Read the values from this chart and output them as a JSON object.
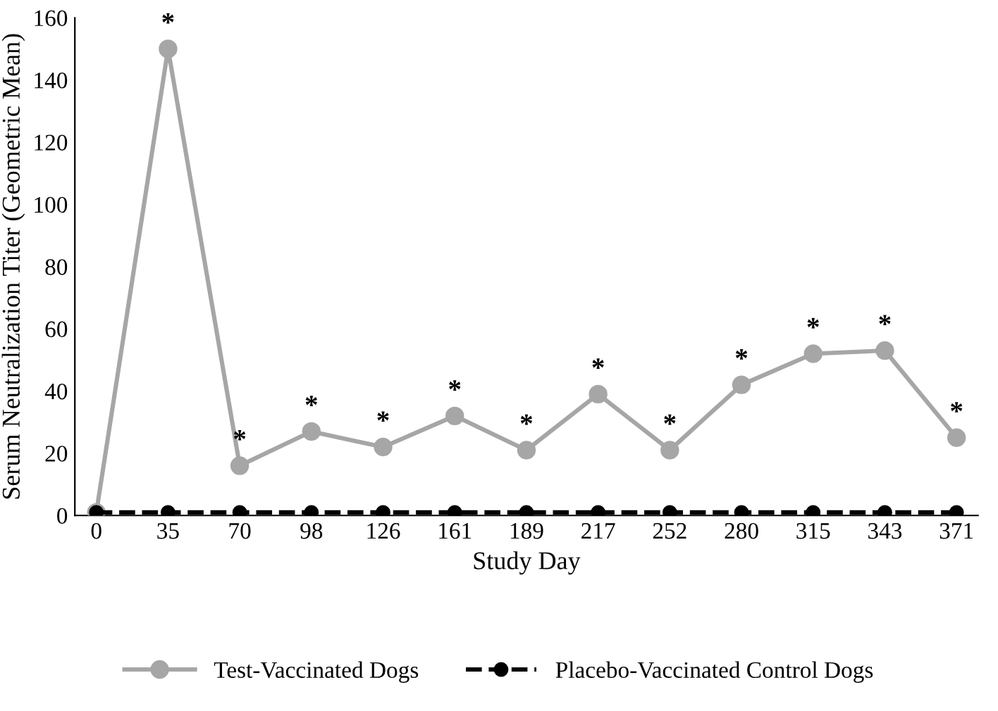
{
  "chart_data": {
    "type": "line",
    "xlabel": "Study Day",
    "ylabel": "Serum Neutralization Titer (Geometric Mean)",
    "categories": [
      "0",
      "35",
      "70",
      "98",
      "126",
      "161",
      "189",
      "217",
      "252",
      "280",
      "315",
      "343",
      "371"
    ],
    "series": [
      {
        "name": "Test-Vaccinated Dogs",
        "color": "#a6a6a6",
        "line_style": "solid",
        "values": [
          1,
          150,
          16,
          27,
          22,
          32,
          21,
          39,
          21,
          42,
          52,
          53,
          25
        ]
      },
      {
        "name": "Placebo-Vaccinated Control Dogs",
        "color": "#000000",
        "line_style": "dashed",
        "values": [
          1,
          1,
          1,
          1,
          1,
          1,
          1,
          1,
          1,
          1,
          1,
          1,
          1
        ]
      }
    ],
    "ylim": [
      0,
      160
    ],
    "yticks": [
      0,
      20,
      40,
      60,
      80,
      100,
      120,
      140,
      160
    ],
    "marker": "circle",
    "grid": false,
    "legend": "bottom",
    "annotations": [
      {
        "text": "*",
        "x": "35",
        "y": 150
      },
      {
        "text": "*",
        "x": "70",
        "y": 16
      },
      {
        "text": "*",
        "x": "98",
        "y": 27
      },
      {
        "text": "*",
        "x": "126",
        "y": 22
      },
      {
        "text": "*",
        "x": "161",
        "y": 32
      },
      {
        "text": "*",
        "x": "189",
        "y": 21
      },
      {
        "text": "*",
        "x": "217",
        "y": 39
      },
      {
        "text": "*",
        "x": "252",
        "y": 21
      },
      {
        "text": "*",
        "x": "280",
        "y": 42
      },
      {
        "text": "*",
        "x": "315",
        "y": 52
      },
      {
        "text": "*",
        "x": "343",
        "y": 53
      },
      {
        "text": "*",
        "x": "371",
        "y": 25
      }
    ]
  }
}
